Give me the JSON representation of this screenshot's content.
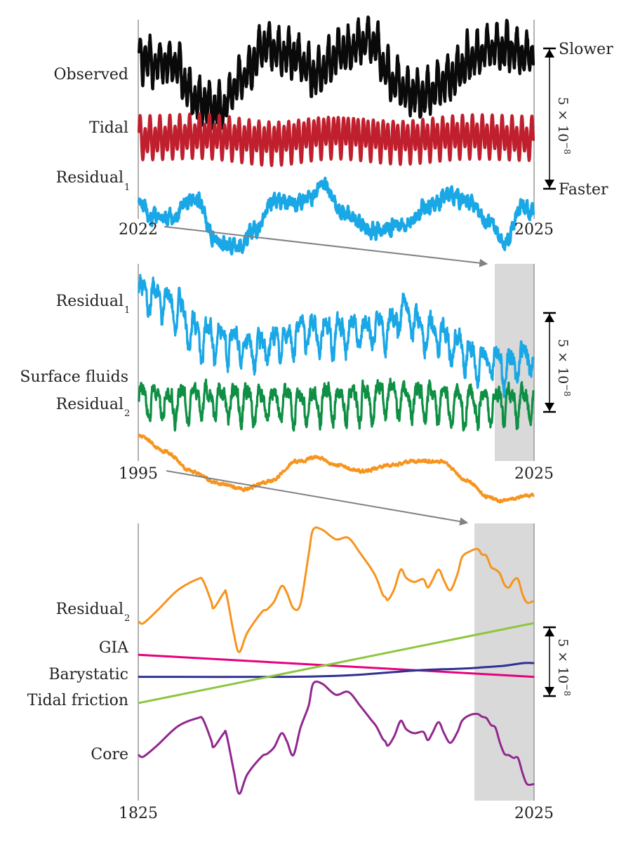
{
  "chart_data": [
    {
      "type": "line",
      "panel": "top",
      "x_range": [
        2022,
        2025
      ],
      "x_ticks": [
        "2022",
        "2025"
      ],
      "ylabel": "",
      "scale_bar": {
        "value_label": "5 × 10",
        "exponent": "−8",
        "value": 5,
        "unit_multiplier": "1e-8",
        "top_label": "Slower",
        "bottom_label": "Faster"
      },
      "series": [
        {
          "name": "Observed",
          "label": "Observed",
          "subscript": "",
          "color": "#0a0a0a",
          "style": "noisy",
          "baseline": 0,
          "osc_amplitude": 0.8,
          "osc_periods_years": [
            0.0377,
            0.0755
          ],
          "noise": 0.15,
          "trend_x": [
            2022.0,
            2022.25,
            2022.45,
            2022.62,
            2022.8,
            2022.95,
            2023.15,
            2023.35,
            2023.55,
            2023.75,
            2023.95,
            2024.15,
            2024.35,
            2024.55,
            2024.7,
            2024.85,
            2025.0
          ],
          "trend_y": [
            0.3,
            0.2,
            -1.2,
            -1.4,
            -0.2,
            0.8,
            0.5,
            -0.2,
            0.6,
            1.0,
            -0.5,
            -1.0,
            -0.4,
            0.5,
            0.8,
            0.6,
            0.6
          ]
        },
        {
          "name": "Tidal",
          "label": "Tidal",
          "subscript": "",
          "color": "#c0202e",
          "style": "noisy",
          "baseline": -2.5,
          "osc_amplitude": 0.8,
          "osc_periods_years": [
            0.0377,
            0.0748
          ],
          "noise": 0.0,
          "trend_x": [
            2022.0,
            2022.5,
            2023.0,
            2023.5,
            2024.0,
            2024.5,
            2025.0
          ],
          "trend_y": [
            0,
            0.1,
            -0.1,
            0.15,
            -0.05,
            0.1,
            0
          ]
        },
        {
          "name": "Residual1",
          "label": "Residual",
          "subscript": "1",
          "color": "#1aa7e6",
          "style": "noisy",
          "baseline": -5.0,
          "osc_amplitude": 0.1,
          "osc_periods_years": [
            0.0377
          ],
          "noise": 0.18,
          "trend_x": [
            2022.0,
            2022.1,
            2022.25,
            2022.35,
            2022.42,
            2022.6,
            2022.75,
            2022.9,
            2023.0,
            2023.15,
            2023.3,
            2023.4,
            2023.55,
            2023.8,
            2024.0,
            2024.2,
            2024.35,
            2024.5,
            2024.65,
            2024.8,
            2024.92,
            2025.0
          ],
          "trend_y": [
            0.2,
            -0.3,
            -0.3,
            0.2,
            0.4,
            -1.2,
            -1.3,
            -0.7,
            0.3,
            0.2,
            0.4,
            0.9,
            -0.2,
            -0.8,
            -0.6,
            0.1,
            0.5,
            0.3,
            -0.5,
            -1.1,
            0.1,
            0.0
          ]
        }
      ]
    },
    {
      "type": "line",
      "panel": "middle",
      "x_range": [
        1995,
        2025
      ],
      "x_ticks": [
        "1995",
        "2025"
      ],
      "highlight_x_range": [
        2022,
        2025
      ],
      "scale_bar": {
        "value_label": "5 × 10",
        "exponent": "−8",
        "value": 5,
        "unit_multiplier": "1e-8"
      },
      "series": [
        {
          "name": "Residual1",
          "label": "Residual",
          "subscript": "1",
          "color": "#1aa7e6",
          "style": "noisy",
          "baseline": 0,
          "osc_amplitude": 0.9,
          "osc_periods_years": [
            1.0,
            0.5
          ],
          "noise": 0.35,
          "trend_x": [
            1995,
            1996,
            1998,
            1999,
            2000,
            2002,
            2004,
            2006,
            2008,
            2010,
            2012,
            2014,
            2015,
            2017,
            2019,
            2021,
            2023,
            2025
          ],
          "trend_y": [
            1.1,
            0.8,
            0.3,
            -0.9,
            -1.2,
            -1.5,
            -1.9,
            -1.3,
            -1.0,
            -1.1,
            -0.8,
            -0.7,
            0.0,
            -0.9,
            -1.6,
            -2.5,
            -2.6,
            -2.2
          ]
        },
        {
          "name": "Surface fluids",
          "label": "Surface fluids",
          "subscript": "",
          "color": "#0e8f43",
          "style": "noisy",
          "baseline": -4.5,
          "osc_amplitude": 1.0,
          "osc_periods_years": [
            1.0,
            0.5
          ],
          "noise": 0.3,
          "trend_x": [
            1995,
            2000,
            2005,
            2010,
            2015,
            2020,
            2025
          ],
          "trend_y": [
            0.0,
            0.1,
            -0.1,
            0.0,
            0.2,
            -0.1,
            0.0
          ]
        },
        {
          "name": "Residual2",
          "label": "Residual",
          "subscript": "2",
          "color": "#f7941d",
          "style": "noisy",
          "baseline": -6.7,
          "osc_amplitude": 0.0,
          "osc_periods_years": [
            1.0
          ],
          "noise": 0.06,
          "trend_x": [
            1995,
            1997,
            1999,
            2001,
            2003,
            2005,
            2007,
            2008.5,
            2010,
            2012,
            2014,
            2016,
            2018,
            2020,
            2021.5,
            2022.5,
            2025
          ],
          "trend_y": [
            0.5,
            -0.3,
            -1.3,
            -1.9,
            -2.2,
            -1.8,
            -0.8,
            -0.6,
            -1.0,
            -1.3,
            -1.0,
            -0.8,
            -0.8,
            -1.8,
            -2.6,
            -2.8,
            -2.5
          ]
        }
      ]
    },
    {
      "type": "line",
      "panel": "bottom",
      "x_range": [
        1825,
        2025
      ],
      "x_ticks": [
        "1825",
        "2025"
      ],
      "highlight_x_range": [
        1995,
        2025
      ],
      "scale_bar": {
        "value_label": "5 × 10",
        "exponent": "−8",
        "value": 5,
        "unit_multiplier": "1e-8"
      },
      "series": [
        {
          "name": "Residual2",
          "label": "Residual",
          "subscript": "2",
          "color": "#f7941d",
          "style": "smooth",
          "x": [
            1825,
            1830,
            1845,
            1868,
            1890,
            1896,
            1905,
            1908,
            1919,
            1922,
            1930,
            1936,
            1945,
            1961,
            1967,
            1975,
            1983,
            1989,
            1996,
            2004,
            2013,
            2018,
            2028,
            2043,
            2057,
            2070,
            2082,
            2088,
            2095,
            2098,
            2101,
            2108,
            2115,
            2121,
            2130,
            2140,
            2145,
            2150,
            2157,
            2163,
            2170,
            2178,
            2183,
            2191,
            2200,
            2205,
            2210,
            2215,
            2220,
            2225,
            2230,
            2235,
            2240,
            2245,
            2250,
            2255,
            2262
          ],
          "y": [
            0.5,
            0.4,
            1.3,
            2.8,
            3.6,
            3.5,
            2.0,
            1.5,
            2.6,
            2.5,
            -0.3,
            -1.7,
            -0.3,
            1.2,
            1.4,
            2.0,
            3.1,
            2.6,
            1.5,
            1.8,
            5.4,
            7.2,
            7.2,
            6.5,
            6.6,
            5.5,
            4.4,
            3.7,
            2.5,
            2.3,
            2.1,
            2.9,
            4.3,
            3.7,
            3.4,
            3.6,
            3.0,
            3.5,
            4.3,
            3.5,
            2.8,
            4.0,
            5.2,
            5.6,
            5.8,
            5.4,
            5.3,
            4.5,
            4.3,
            4.0,
            3.2,
            3.0,
            3.5,
            3.6,
            2.5,
            1.9,
            2.0
          ]
        },
        {
          "name": "GIA",
          "label": "GIA",
          "subscript": "",
          "color": "#e6007e",
          "style": "smooth",
          "x": [
            1825,
            2025
          ],
          "y": [
            -1.9,
            -3.5
          ]
        },
        {
          "name": "Barystatic",
          "label": "Barystatic",
          "subscript": "",
          "color": "#2e3192",
          "style": "smooth",
          "x": [
            1825,
            1900,
            1930,
            1950,
            1970,
            1990,
            2000,
            2010,
            2020,
            2025
          ],
          "y": [
            -3.5,
            -3.5,
            -3.4,
            -3.2,
            -3.0,
            -2.9,
            -2.8,
            -2.7,
            -2.5,
            -2.5
          ]
        },
        {
          "name": "Tidal friction",
          "label": "Tidal friction",
          "subscript": "",
          "color": "#8dc63f",
          "style": "smooth",
          "x": [
            1825,
            2025
          ],
          "y": [
            -5.4,
            0.4
          ]
        },
        {
          "name": "Core",
          "label": "Core",
          "subscript": "",
          "color": "#92278f",
          "style": "smooth",
          "x": [
            1825,
            1830,
            1845,
            1868,
            1890,
            1896,
            1905,
            1908,
            1919,
            1922,
            1930,
            1936,
            1945,
            1961,
            1967,
            1975,
            1983,
            1989,
            1996,
            2004,
            2013,
            2018,
            2028,
            2043,
            2057,
            2070,
            2082,
            2088,
            2095,
            2098,
            2101,
            2108,
            2115,
            2121,
            2130,
            2140,
            2145,
            2150,
            2157,
            2163,
            2170,
            2178,
            2183,
            2191,
            2200,
            2205,
            2210,
            2215,
            2220,
            2225,
            2230,
            2235,
            2240,
            2245,
            2250,
            2255,
            2262
          ],
          "y": [
            -9.2,
            -9.3,
            -8.5,
            -7.1,
            -6.5,
            -6.6,
            -8.1,
            -8.6,
            -7.6,
            -7.7,
            -10.3,
            -12.0,
            -10.6,
            -9.3,
            -9.1,
            -8.6,
            -7.6,
            -8.2,
            -9.2,
            -7.2,
            -5.6,
            -4.0,
            -4.0,
            -4.8,
            -4.6,
            -5.6,
            -6.6,
            -7.1,
            -8.0,
            -8.2,
            -8.5,
            -7.8,
            -6.7,
            -7.3,
            -7.6,
            -7.5,
            -8.1,
            -7.6,
            -6.8,
            -7.6,
            -8.3,
            -7.5,
            -6.7,
            -6.3,
            -6.2,
            -6.4,
            -6.5,
            -7.0,
            -7.2,
            -8.3,
            -9.1,
            -9.2,
            -9.4,
            -9.4,
            -10.5,
            -11.3,
            -11.3
          ]
        }
      ]
    }
  ],
  "connectors": [
    {
      "from_label": "2022",
      "to": "middle-highlight"
    },
    {
      "from_label": "1995",
      "to": "bottom-highlight"
    }
  ]
}
